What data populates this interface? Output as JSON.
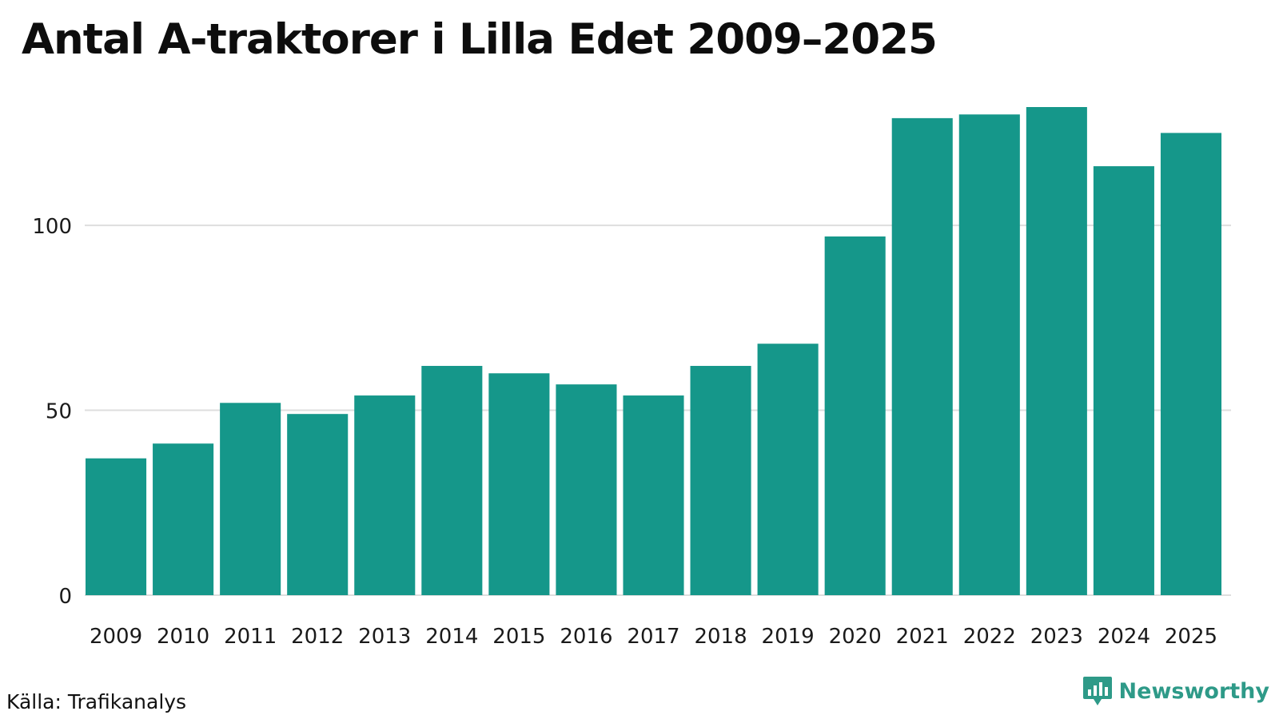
{
  "chart_data": {
    "type": "bar",
    "title": "Antal A-traktorer i Lilla Edet 2009–2025",
    "categories": [
      "2009",
      "2010",
      "2011",
      "2012",
      "2013",
      "2014",
      "2015",
      "2016",
      "2017",
      "2018",
      "2019",
      "2020",
      "2021",
      "2022",
      "2023",
      "2024",
      "2025"
    ],
    "values": [
      37,
      41,
      52,
      49,
      54,
      62,
      60,
      57,
      54,
      62,
      68,
      97,
      129,
      130,
      132,
      116,
      125
    ],
    "xlabel": "",
    "ylabel": "",
    "ylim": [
      0,
      132
    ],
    "yticks": [
      0,
      50,
      100
    ],
    "ytick_labels": [
      "0",
      "50",
      "100"
    ],
    "grid": "horizontal",
    "bar_color": "#15978a"
  },
  "footer": {
    "source": "Källa: Trafikanalys",
    "brand": "Newsworthy",
    "brand_icon": "bar-chart-speech-bubble-icon",
    "brand_color": "#2e9a88"
  }
}
